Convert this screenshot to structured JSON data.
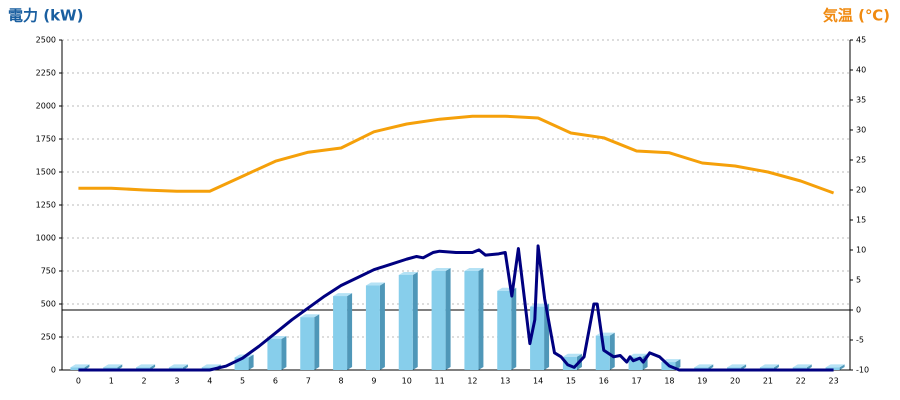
{
  "chart_data": {
    "type": "combo",
    "y_title": "電力 (kW)",
    "y2_title": "気温 (℃)",
    "categories": [
      "0",
      "1",
      "2",
      "3",
      "4",
      "5",
      "6",
      "7",
      "8",
      "9",
      "10",
      "11",
      "12",
      "13",
      "14",
      "15",
      "16",
      "17",
      "18",
      "19",
      "20",
      "21",
      "22",
      "23"
    ],
    "ylim": [
      0,
      2500
    ],
    "yticks": [
      0,
      250,
      500,
      750,
      1000,
      1250,
      1500,
      1750,
      2000,
      2250,
      2500
    ],
    "y2lim": [
      -10,
      45
    ],
    "y2ticks": [
      -10,
      -5,
      0,
      5,
      10,
      15,
      20,
      25,
      30,
      35,
      40,
      45
    ],
    "grid": true,
    "series": [
      {
        "type": "bar",
        "color": "#87ceeb",
        "values": [
          20,
          20,
          20,
          20,
          20,
          95,
          235,
          400,
          560,
          640,
          720,
          750,
          750,
          600,
          480,
          100,
          260,
          100,
          60,
          20,
          20,
          20,
          20,
          20
        ]
      },
      {
        "type": "line",
        "color": "#000080",
        "x": [
          0,
          1,
          2,
          3,
          4,
          4.5,
          5,
          5.5,
          6,
          6.5,
          7,
          7.5,
          8,
          8.5,
          9,
          9.5,
          10,
          10.3,
          10.5,
          10.8,
          11,
          11.5,
          12,
          12.2,
          12.4,
          12.8,
          13,
          13.2,
          13.4,
          13.75,
          13.9,
          14.0,
          14.2,
          14.5,
          14.7,
          14.9,
          15.1,
          15.4,
          15.7,
          15.8,
          16,
          16.3,
          16.5,
          16.7,
          16.8,
          16.9,
          17.1,
          17.2,
          17.4,
          17.7,
          18,
          18.3,
          19,
          20,
          21,
          22,
          23
        ],
        "values": [
          0,
          0,
          0,
          0,
          0,
          30,
          90,
          180,
          280,
          380,
          470,
          560,
          640,
          700,
          760,
          800,
          840,
          860,
          850,
          890,
          900,
          890,
          890,
          910,
          870,
          880,
          890,
          560,
          920,
          200,
          380,
          940,
          540,
          130,
          100,
          40,
          20,
          100,
          500,
          500,
          150,
          100,
          110,
          60,
          100,
          70,
          90,
          60,
          130,
          100,
          30,
          0,
          0,
          0,
          0,
          0,
          0
        ]
      },
      {
        "type": "line",
        "axis": "y2",
        "color": "#f5a00a",
        "values": [
          20.3,
          20.3,
          20,
          19.8,
          19.8,
          22.3,
          24.8,
          26.3,
          27,
          29.7,
          31,
          31.8,
          32.3,
          32.3,
          32,
          29.5,
          28.7,
          26.5,
          26.2,
          24.5,
          24,
          23,
          21.5,
          19.5
        ]
      }
    ]
  }
}
